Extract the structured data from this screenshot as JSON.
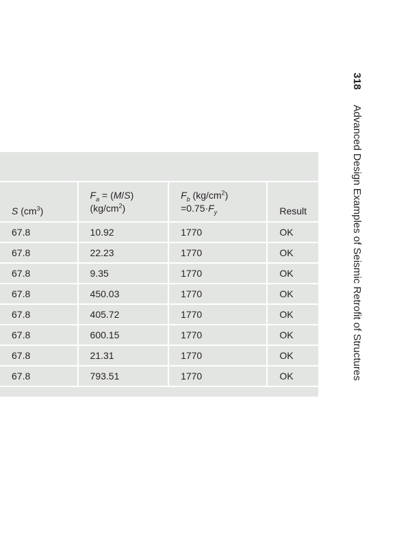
{
  "running_head": {
    "page_number": "318",
    "book_title": "Advanced Design Examples of Seismic Retrofit of Structures"
  },
  "table": {
    "headers": {
      "s": {
        "symbol": "S",
        "unit": " (cm",
        "unit_exp": "3",
        "unit_close": ")"
      },
      "fa": {
        "symbol": "F",
        "sub": "a",
        "formula": " = (",
        "m": "M",
        "slash": "/",
        "s2": "S",
        "close": ")",
        "unit": "(kg/cm",
        "unit_exp": "2",
        "unit_close": ")"
      },
      "fb": {
        "symbol": "F",
        "sub": "b",
        "unit": " (kg/cm",
        "unit_exp": "2",
        "unit_close": ")",
        "formula": "=0.75·",
        "fy": "F",
        "fy_sub": "y"
      },
      "result": "Result"
    },
    "rows": [
      {
        "s": "67.8",
        "fa": "10.92",
        "fb": "1770",
        "result": "OK"
      },
      {
        "s": "67.8",
        "fa": "22.23",
        "fb": "1770",
        "result": "OK"
      },
      {
        "s": "67.8",
        "fa": "9.35",
        "fb": "1770",
        "result": "OK"
      },
      {
        "s": "67.8",
        "fa": "450.03",
        "fb": "1770",
        "result": "OK"
      },
      {
        "s": "67.8",
        "fa": "405.72",
        "fb": "1770",
        "result": "OK"
      },
      {
        "s": "67.8",
        "fa": "600.15",
        "fb": "1770",
        "result": "OK"
      },
      {
        "s": "67.8",
        "fa": "21.31",
        "fb": "1770",
        "result": "OK"
      },
      {
        "s": "67.8",
        "fa": "793.51",
        "fb": "1770",
        "result": "OK"
      }
    ]
  }
}
